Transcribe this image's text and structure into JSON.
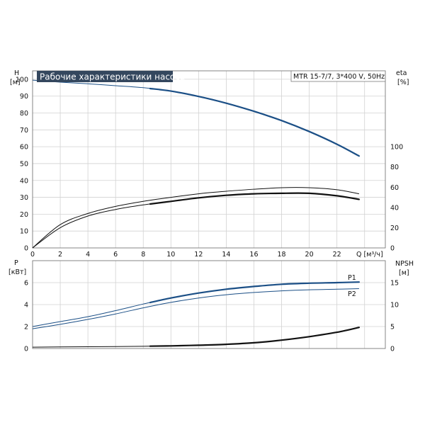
{
  "colors": {
    "head_curve": "#1b4f86",
    "power_curve": "#1b4f86",
    "eta_curve": "#111111",
    "npsh_curve": "#111111",
    "title_background": "#34475e",
    "grid": "#d2d2d2"
  },
  "chart_data": [
    {
      "type": "line",
      "title": "Рабочие характеристики насоса",
      "subtitle": "MTR 15-7/7, 3*400 V, 50Hz",
      "xlabel": "Q [м³/ч]",
      "ylabel": "H",
      "ylabel_unit": "[м]",
      "y2label": "eta",
      "y2label_unit": "[%]",
      "xlim": [
        0,
        25.5
      ],
      "ylim": [
        0,
        105
      ],
      "y2lim": [
        0,
        175
      ],
      "x_ticks": [
        0,
        2,
        4,
        6,
        8,
        10,
        12,
        14,
        16,
        18,
        20,
        22
      ],
      "y_ticks": [
        0,
        10,
        20,
        30,
        40,
        50,
        60,
        70,
        80,
        90,
        100
      ],
      "y2_ticks": [
        0,
        20,
        40,
        60,
        80,
        100
      ],
      "grid": true,
      "series": [
        {
          "axis": "left",
          "x": [
            0,
            2,
            4,
            6,
            8,
            10,
            12,
            14,
            16,
            18,
            20,
            22,
            23.6
          ],
          "y": [
            99.5,
            98.3,
            97.3,
            96.2,
            95.0,
            93.0,
            89.8,
            85.8,
            81.0,
            75.5,
            69.0,
            61.5,
            54.5
          ],
          "bold_from": 8.5
        },
        {
          "axis": "right",
          "x": [
            0,
            2,
            4,
            6,
            8,
            10,
            12,
            14,
            16,
            18,
            20,
            22,
            23.6
          ],
          "y": [
            0,
            23,
            34,
            41,
            46,
            50,
            53.5,
            56,
            58,
            59.5,
            59.5,
            57.5,
            53.5
          ]
        },
        {
          "axis": "right",
          "x": [
            0,
            2,
            4,
            6,
            8,
            10,
            12,
            14,
            16,
            18,
            20,
            22,
            23.6
          ],
          "y": [
            0,
            20,
            31.5,
            38,
            42.5,
            46,
            49.5,
            52,
            53.5,
            54,
            54,
            51.5,
            48
          ],
          "bold_from": 8.5
        }
      ]
    },
    {
      "type": "line",
      "xlim": [
        0,
        25.5
      ],
      "ylabel": "P",
      "ylabel_unit": "[кВт]",
      "y2label": "NPSH",
      "y2label_unit": "[м]",
      "ylim": [
        0,
        8
      ],
      "y2lim": [
        0,
        20
      ],
      "y_ticks": [
        0,
        2,
        4,
        6
      ],
      "y2_ticks": [
        0,
        5,
        10,
        15
      ],
      "grid": true,
      "series": [
        {
          "name": "P1",
          "axis": "left",
          "x": [
            0,
            2,
            4,
            6,
            8,
            10,
            12,
            14,
            16,
            18,
            20,
            22,
            23.6
          ],
          "y": [
            2.0,
            2.45,
            2.9,
            3.45,
            4.05,
            4.6,
            5.05,
            5.4,
            5.65,
            5.85,
            5.95,
            6.0,
            6.05
          ],
          "bold_from": 8.5
        },
        {
          "name": "P2",
          "axis": "left",
          "x": [
            0,
            2,
            4,
            6,
            8,
            10,
            12,
            14,
            16,
            18,
            20,
            22,
            23.6
          ],
          "y": [
            1.8,
            2.2,
            2.65,
            3.15,
            3.7,
            4.2,
            4.6,
            4.9,
            5.1,
            5.25,
            5.35,
            5.4,
            5.45
          ]
        },
        {
          "axis": "right",
          "x": [
            0,
            2,
            4,
            6,
            8,
            10,
            12,
            14,
            16,
            18,
            20,
            22,
            23.6
          ],
          "y": [
            0.3,
            0.35,
            0.4,
            0.45,
            0.5,
            0.6,
            0.75,
            0.95,
            1.3,
            1.9,
            2.7,
            3.7,
            4.8
          ],
          "bold_from": 8.5
        }
      ]
    }
  ]
}
